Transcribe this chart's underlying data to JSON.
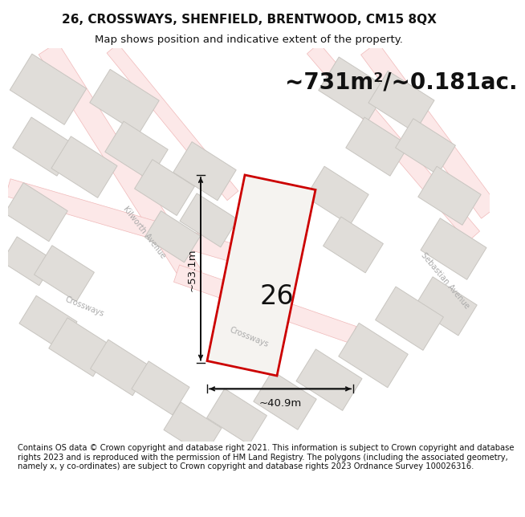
{
  "title_line1": "26, CROSSWAYS, SHENFIELD, BRENTWOOD, CM15 8QX",
  "title_line2": "Map shows position and indicative extent of the property.",
  "area_label": "~731m²/~0.181ac.",
  "plot_number": "26",
  "dim_width": "~40.9m",
  "dim_height": "~53.1m",
  "footer": "Contains OS data © Crown copyright and database right 2021. This information is subject to Crown copyright and database rights 2023 and is reproduced with the permission of HM Land Registry. The polygons (including the associated geometry, namely x, y co-ordinates) are subject to Crown copyright and database rights 2023 Ordnance Survey 100026316.",
  "bg_color": "#f5f3f0",
  "road_fill_color": "#fce8e8",
  "road_edge_color": "#f0b8b8",
  "building_fill": "#e0ddd9",
  "building_stroke": "#c8c5c0",
  "plot_stroke": "#cc0000",
  "plot_fill": "#f5f3f0",
  "dim_color": "#111111",
  "road_label_color": "#aaaaaa",
  "title_fontsize": 11,
  "subtitle_fontsize": 9.5,
  "area_fontsize": 20,
  "plot_num_fontsize": 24,
  "dim_fontsize": 9.5,
  "footer_fontsize": 7.2,
  "road_label_fontsize": 7
}
